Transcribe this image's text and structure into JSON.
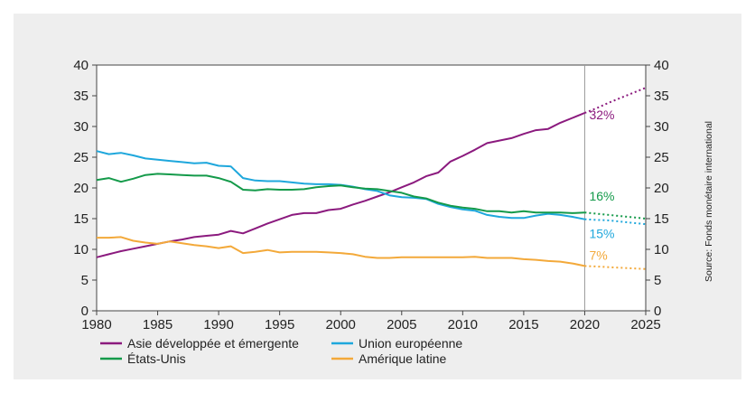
{
  "chart_data": {
    "type": "line",
    "x_ticks": [
      "1980",
      "1985",
      "1990",
      "1995",
      "2000",
      "2005",
      "2010",
      "2015",
      "2020",
      "2025"
    ],
    "y_ticks": [
      "0",
      "5",
      "10",
      "15",
      "20",
      "25",
      "30",
      "35",
      "40"
    ],
    "xlim": [
      1980,
      2025
    ],
    "ylim": [
      0,
      40
    ],
    "grid": false,
    "secondary_y_axis": true,
    "reference_line_x": 2020,
    "projection_start": 2020,
    "source_note": "Source: Fonds monétaire international",
    "legend_position": "bottom",
    "series": [
      {
        "name": "Asie développée et émergente",
        "color": "#8b1a7e",
        "end_label": "32%",
        "x": [
          1980,
          1981,
          1982,
          1983,
          1984,
          1985,
          1986,
          1987,
          1988,
          1989,
          1990,
          1991,
          1992,
          1993,
          1994,
          1995,
          1996,
          1997,
          1998,
          1999,
          2000,
          2001,
          2002,
          2003,
          2004,
          2005,
          2006,
          2007,
          2008,
          2009,
          2010,
          2011,
          2012,
          2013,
          2014,
          2015,
          2016,
          2017,
          2018,
          2019,
          2020
        ],
        "values": [
          8.7,
          9.2,
          9.7,
          10.1,
          10.5,
          10.9,
          11.3,
          11.6,
          12.0,
          12.2,
          12.4,
          13.0,
          12.6,
          13.4,
          14.2,
          14.9,
          15.6,
          15.9,
          15.9,
          16.4,
          16.6,
          17.3,
          17.9,
          18.6,
          19.3,
          20.1,
          20.9,
          21.9,
          22.5,
          24.3,
          25.2,
          26.2,
          27.3,
          27.7,
          28.1,
          28.8,
          29.4,
          29.6,
          30.6,
          31.4,
          32.2
        ],
        "projection_x": [
          2020,
          2021,
          2022,
          2023,
          2024,
          2025
        ],
        "projection_values": [
          32.2,
          33.0,
          33.9,
          34.7,
          35.5,
          36.3
        ]
      },
      {
        "name": "Union européenne",
        "color": "#1ea7dc",
        "end_label": "15%",
        "x": [
          1980,
          1981,
          1982,
          1983,
          1984,
          1985,
          1986,
          1987,
          1988,
          1989,
          1990,
          1991,
          1992,
          1993,
          1994,
          1995,
          1996,
          1997,
          1998,
          1999,
          2000,
          2001,
          2002,
          2003,
          2004,
          2005,
          2006,
          2007,
          2008,
          2009,
          2010,
          2011,
          2012,
          2013,
          2014,
          2015,
          2016,
          2017,
          2018,
          2019,
          2020
        ],
        "values": [
          26.0,
          25.5,
          25.7,
          25.3,
          24.8,
          24.6,
          24.4,
          24.2,
          24.0,
          24.1,
          23.6,
          23.5,
          21.6,
          21.2,
          21.1,
          21.1,
          20.9,
          20.7,
          20.6,
          20.6,
          20.5,
          20.2,
          19.8,
          19.5,
          18.8,
          18.5,
          18.4,
          18.2,
          17.4,
          16.9,
          16.5,
          16.3,
          15.6,
          15.3,
          15.1,
          15.1,
          15.5,
          15.8,
          15.6,
          15.3,
          14.9
        ],
        "projection_x": [
          2020,
          2021,
          2022,
          2023,
          2024,
          2025
        ],
        "projection_values": [
          14.9,
          14.8,
          14.7,
          14.5,
          14.3,
          14.1
        ]
      },
      {
        "name": "États-Unis",
        "color": "#149a4a",
        "end_label": "16%",
        "x": [
          1980,
          1981,
          1982,
          1983,
          1984,
          1985,
          1986,
          1987,
          1988,
          1989,
          1990,
          1991,
          1992,
          1993,
          1994,
          1995,
          1996,
          1997,
          1998,
          1999,
          2000,
          2001,
          2002,
          2003,
          2004,
          2005,
          2006,
          2007,
          2008,
          2009,
          2010,
          2011,
          2012,
          2013,
          2014,
          2015,
          2016,
          2017,
          2018,
          2019,
          2020
        ],
        "values": [
          21.3,
          21.6,
          21.0,
          21.5,
          22.1,
          22.3,
          22.2,
          22.1,
          22.0,
          22.0,
          21.6,
          21.0,
          19.7,
          19.6,
          19.8,
          19.7,
          19.7,
          19.8,
          20.1,
          20.3,
          20.4,
          20.1,
          19.9,
          19.8,
          19.5,
          19.2,
          18.6,
          18.3,
          17.6,
          17.1,
          16.8,
          16.6,
          16.2,
          16.2,
          16.0,
          16.2,
          16.0,
          16.0,
          16.0,
          15.9,
          16.0
        ],
        "projection_x": [
          2020,
          2021,
          2022,
          2023,
          2024,
          2025
        ],
        "projection_values": [
          16.0,
          15.8,
          15.6,
          15.4,
          15.2,
          15.0
        ]
      },
      {
        "name": "Amérique latine",
        "color": "#f3a93a",
        "end_label": "7%",
        "x": [
          1980,
          1981,
          1982,
          1983,
          1984,
          1985,
          1986,
          1987,
          1988,
          1989,
          1990,
          1991,
          1992,
          1993,
          1994,
          1995,
          1996,
          1997,
          1998,
          1999,
          2000,
          2001,
          2002,
          2003,
          2004,
          2005,
          2006,
          2007,
          2008,
          2009,
          2010,
          2011,
          2012,
          2013,
          2014,
          2015,
          2016,
          2017,
          2018,
          2019,
          2020
        ],
        "values": [
          11.9,
          11.9,
          12.0,
          11.4,
          11.1,
          10.9,
          11.3,
          11.0,
          10.7,
          10.5,
          10.2,
          10.5,
          9.4,
          9.6,
          9.9,
          9.5,
          9.6,
          9.6,
          9.6,
          9.5,
          9.4,
          9.2,
          8.8,
          8.6,
          8.6,
          8.7,
          8.7,
          8.7,
          8.7,
          8.7,
          8.7,
          8.8,
          8.6,
          8.6,
          8.6,
          8.4,
          8.3,
          8.1,
          8.0,
          7.7,
          7.3
        ],
        "projection_x": [
          2020,
          2021,
          2022,
          2023,
          2024,
          2025
        ],
        "projection_values": [
          7.3,
          7.2,
          7.1,
          7.0,
          6.9,
          6.8
        ]
      }
    ]
  }
}
